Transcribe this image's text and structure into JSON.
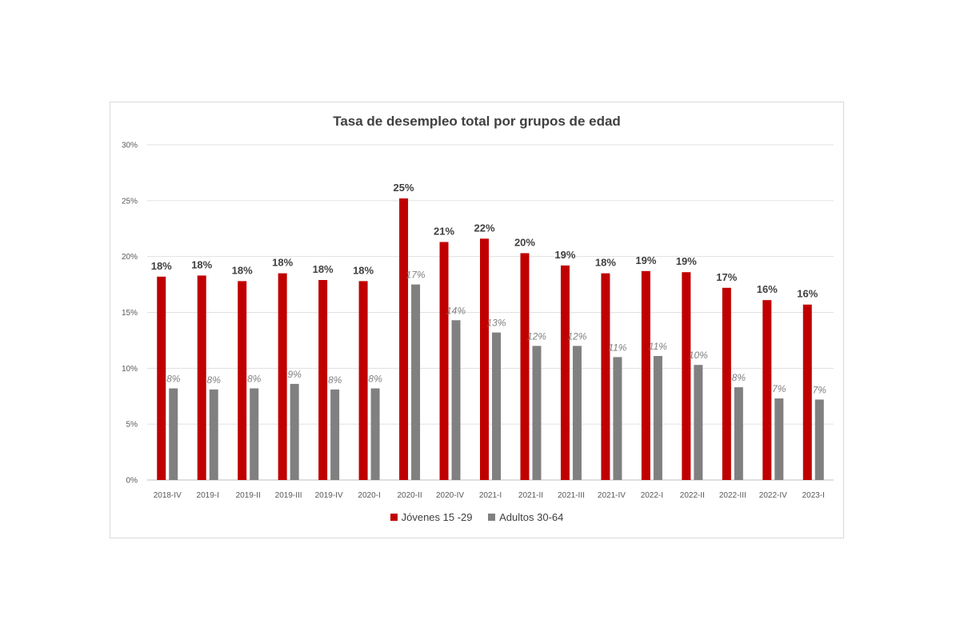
{
  "chart_data": {
    "type": "bar",
    "title": "Tasa de desempleo total por grupos de edad",
    "categories": [
      "2018-IV",
      "2019-I",
      "2019-II",
      "2019-III",
      "2019-IV",
      "2020-I",
      "2020-II",
      "2020-IV",
      "2021-I",
      "2021-II",
      "2021-III",
      "2021-IV",
      "2022-I",
      "2022-II",
      "2022-III",
      "2022-IV",
      "2023-I"
    ],
    "series": [
      {
        "name": "Jóvenes 15 -29",
        "color": "#c00000",
        "values": [
          18.2,
          18.3,
          17.8,
          18.5,
          17.9,
          17.8,
          25.2,
          21.3,
          21.6,
          20.3,
          19.2,
          18.5,
          18.7,
          18.6,
          17.2,
          16.1,
          15.7
        ],
        "labels": [
          "18%",
          "18%",
          "18%",
          "18%",
          "18%",
          "18%",
          "25%",
          "21%",
          "22%",
          "20%",
          "19%",
          "18%",
          "19%",
          "19%",
          "17%",
          "16%",
          "16%"
        ]
      },
      {
        "name": "Adultos 30-64",
        "color": "#808080",
        "values": [
          8.2,
          8.1,
          8.2,
          8.6,
          8.1,
          8.2,
          17.5,
          14.3,
          13.2,
          12.0,
          12.0,
          11.0,
          11.1,
          10.3,
          8.3,
          7.3,
          7.2
        ],
        "labels": [
          "8%",
          "8%",
          "8%",
          "9%",
          "8%",
          "8%",
          "17%",
          "14%",
          "13%",
          "12%",
          "12%",
          "11%",
          "11%",
          "10%",
          "8%",
          "7%",
          "7%"
        ]
      }
    ],
    "yticks": [
      "0%",
      "5%",
      "10%",
      "15%",
      "20%",
      "25%",
      "30%"
    ],
    "ylim": [
      0,
      30
    ],
    "grid": true,
    "legend": "bottom"
  }
}
